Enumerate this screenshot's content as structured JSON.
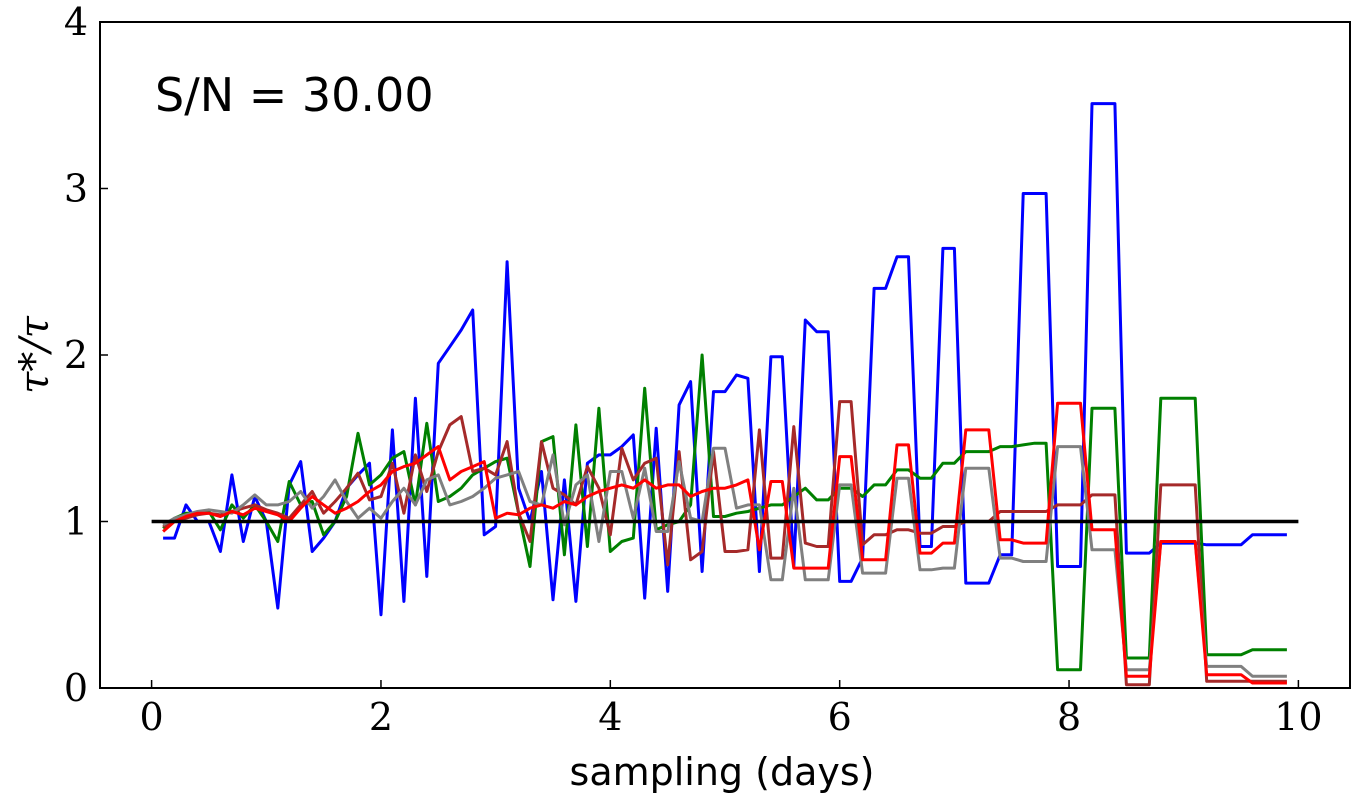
{
  "chart_data": {
    "type": "line",
    "title": "",
    "annotation": "S/N = 30.00",
    "xlabel": "sampling (days)",
    "ylabel": "τ*/τ",
    "xlim": [
      -0.45,
      10.45
    ],
    "ylim": [
      0,
      4
    ],
    "xticks": [
      0,
      2,
      4,
      6,
      8,
      10
    ],
    "yticks": [
      0,
      1,
      2,
      3,
      4
    ],
    "grid": false,
    "reference_line": {
      "y": 1,
      "x_range": [
        0,
        10
      ],
      "color": "#000000"
    },
    "series": [
      {
        "name": "blue",
        "color": "#0000ff",
        "x": [
          0.1,
          0.2,
          0.3,
          0.4,
          0.5,
          0.6,
          0.7,
          0.8,
          0.9,
          1.0,
          1.1,
          1.2,
          1.3,
          1.4,
          1.5,
          1.6,
          1.7,
          1.8,
          1.9,
          2.0,
          2.1,
          2.2,
          2.3,
          2.4,
          2.5,
          2.6,
          2.7,
          2.8,
          2.9,
          3.0,
          3.1,
          3.2,
          3.3,
          3.4,
          3.5,
          3.6,
          3.7,
          3.8,
          3.9,
          4.0,
          4.1,
          4.2,
          4.3,
          4.4,
          4.5,
          4.6,
          4.7,
          4.8,
          4.9,
          5.0,
          5.1,
          5.2,
          5.3,
          5.4,
          5.5,
          5.6,
          5.7,
          5.8,
          5.9,
          6.0,
          6.1,
          6.2,
          6.3,
          6.4,
          6.5,
          6.6,
          6.7,
          6.8,
          6.9,
          7.0,
          7.1,
          7.2,
          7.3,
          7.4,
          7.5,
          7.6,
          7.7,
          7.8,
          7.9,
          8.0,
          8.1,
          8.2,
          8.3,
          8.4,
          8.5,
          8.6,
          8.7,
          8.8,
          8.9,
          9.0,
          9.1,
          9.2,
          9.3,
          9.4,
          9.5,
          9.6,
          9.7,
          9.8,
          9.9
        ],
        "y": [
          0.9,
          0.9,
          1.1,
          1.0,
          1.0,
          0.82,
          1.28,
          0.88,
          1.15,
          1.0,
          0.48,
          1.22,
          1.36,
          0.82,
          0.9,
          1.0,
          1.2,
          1.28,
          1.35,
          0.44,
          1.55,
          0.52,
          1.74,
          0.67,
          1.95,
          2.05,
          2.15,
          2.27,
          0.92,
          0.97,
          2.56,
          1.2,
          1.0,
          1.3,
          0.53,
          1.25,
          0.52,
          1.35,
          1.4,
          1.4,
          1.45,
          1.52,
          0.54,
          1.56,
          0.58,
          1.7,
          1.84,
          0.7,
          1.78,
          1.78,
          1.88,
          1.86,
          0.7,
          1.99,
          1.99,
          0.73,
          2.21,
          2.14,
          2.14,
          0.64,
          0.64,
          0.78,
          2.4,
          2.4,
          2.59,
          2.59,
          0.85,
          0.85,
          2.64,
          2.64,
          0.63,
          0.63,
          0.63,
          0.8,
          0.8,
          2.97,
          2.97,
          2.97,
          0.73,
          0.73,
          0.73,
          3.51,
          3.51,
          3.51,
          0.81,
          0.81,
          0.81,
          0.87,
          0.87,
          0.87,
          0.87,
          0.86,
          0.86,
          0.86,
          0.86,
          0.92,
          0.92,
          0.92,
          0.92
        ]
      },
      {
        "name": "green",
        "color": "#008000",
        "x": [
          0.1,
          0.2,
          0.3,
          0.4,
          0.5,
          0.6,
          0.7,
          0.8,
          0.9,
          1.0,
          1.1,
          1.2,
          1.3,
          1.4,
          1.5,
          1.6,
          1.7,
          1.8,
          1.9,
          2.0,
          2.1,
          2.2,
          2.3,
          2.4,
          2.5,
          2.6,
          2.7,
          2.8,
          2.9,
          3.0,
          3.1,
          3.2,
          3.3,
          3.4,
          3.5,
          3.6,
          3.7,
          3.8,
          3.9,
          4.0,
          4.1,
          4.2,
          4.3,
          4.4,
          4.5,
          4.6,
          4.7,
          4.8,
          4.9,
          5.0,
          5.1,
          5.2,
          5.3,
          5.4,
          5.5,
          5.6,
          5.7,
          5.8,
          5.9,
          6.0,
          6.1,
          6.2,
          6.3,
          6.4,
          6.5,
          6.6,
          6.7,
          6.8,
          6.9,
          7.0,
          7.1,
          7.2,
          7.3,
          7.4,
          7.5,
          7.6,
          7.7,
          7.8,
          7.9,
          8.0,
          8.1,
          8.2,
          8.3,
          8.4,
          8.5,
          8.6,
          8.7,
          8.8,
          8.9,
          9.0,
          9.1,
          9.2,
          9.3,
          9.4,
          9.5,
          9.6,
          9.7,
          9.8,
          9.9
        ],
        "y": [
          0.96,
          1.02,
          1.05,
          1.05,
          1.06,
          0.95,
          1.1,
          1.02,
          1.1,
          1.0,
          0.88,
          1.24,
          1.1,
          1.12,
          0.92,
          1.0,
          1.15,
          1.53,
          1.22,
          1.28,
          1.38,
          1.42,
          1.1,
          1.59,
          1.12,
          1.15,
          1.2,
          1.28,
          1.32,
          1.36,
          1.38,
          1.05,
          0.73,
          1.48,
          1.51,
          0.8,
          1.58,
          0.85,
          1.68,
          0.82,
          0.88,
          0.9,
          1.8,
          0.95,
          0.98,
          1.0,
          1.1,
          2.0,
          1.03,
          1.03,
          1.05,
          1.06,
          1.08,
          1.1,
          1.1,
          1.15,
          1.2,
          1.13,
          1.13,
          1.2,
          1.2,
          1.15,
          1.22,
          1.22,
          1.31,
          1.31,
          1.26,
          1.26,
          1.35,
          1.35,
          1.42,
          1.42,
          1.42,
          1.45,
          1.45,
          1.46,
          1.47,
          1.47,
          0.11,
          0.11,
          0.11,
          1.68,
          1.68,
          1.68,
          0.18,
          0.18,
          0.18,
          1.74,
          1.74,
          1.74,
          1.74,
          0.2,
          0.2,
          0.2,
          0.2,
          0.23,
          0.23,
          0.23,
          0.23
        ]
      },
      {
        "name": "brown",
        "color": "#a52a2a",
        "x": [
          0.1,
          0.2,
          0.3,
          0.4,
          0.5,
          0.6,
          0.7,
          0.8,
          0.9,
          1.0,
          1.1,
          1.2,
          1.3,
          1.4,
          1.5,
          1.6,
          1.7,
          1.8,
          1.9,
          2.0,
          2.1,
          2.2,
          2.3,
          2.4,
          2.5,
          2.6,
          2.7,
          2.8,
          2.9,
          3.0,
          3.1,
          3.2,
          3.3,
          3.4,
          3.5,
          3.6,
          3.7,
          3.8,
          3.9,
          4.0,
          4.1,
          4.2,
          4.3,
          4.4,
          4.5,
          4.6,
          4.7,
          4.8,
          4.9,
          5.0,
          5.1,
          5.2,
          5.3,
          5.4,
          5.5,
          5.6,
          5.7,
          5.8,
          5.9,
          6.0,
          6.1,
          6.2,
          6.3,
          6.4,
          6.5,
          6.6,
          6.7,
          6.8,
          6.9,
          7.0,
          7.1,
          7.2,
          7.3,
          7.4,
          7.5,
          7.6,
          7.7,
          7.8,
          7.9,
          8.0,
          8.1,
          8.2,
          8.3,
          8.4,
          8.5,
          8.6,
          8.7,
          8.8,
          8.9,
          9.0,
          9.1,
          9.2,
          9.3,
          9.4,
          9.5,
          9.6,
          9.7,
          9.8,
          9.9
        ],
        "y": [
          0.97,
          1.0,
          1.02,
          1.04,
          1.05,
          1.04,
          1.06,
          1.08,
          1.1,
          1.07,
          1.05,
          1.02,
          1.1,
          1.18,
          1.05,
          1.12,
          1.2,
          1.29,
          1.13,
          1.15,
          1.35,
          1.05,
          1.4,
          1.18,
          1.42,
          1.58,
          1.63,
          1.3,
          1.32,
          1.28,
          1.48,
          1.05,
          0.88,
          1.48,
          1.2,
          1.16,
          1.1,
          1.33,
          1.2,
          0.92,
          1.44,
          1.25,
          1.35,
          1.38,
          0.74,
          1.42,
          0.77,
          0.82,
          1.42,
          0.82,
          0.82,
          0.83,
          1.55,
          0.78,
          0.78,
          1.57,
          0.87,
          0.85,
          0.85,
          1.72,
          1.72,
          0.86,
          0.92,
          0.92,
          0.95,
          0.95,
          0.93,
          0.93,
          0.97,
          0.97,
          1.0,
          1.0,
          1.0,
          1.06,
          1.06,
          1.06,
          1.06,
          1.06,
          1.1,
          1.1,
          1.1,
          1.16,
          1.16,
          1.16,
          0.02,
          0.02,
          0.02,
          1.22,
          1.22,
          1.22,
          1.22,
          0.04,
          0.04,
          0.04,
          0.04,
          0.04,
          0.04,
          0.04,
          0.04
        ]
      },
      {
        "name": "gray",
        "color": "#808080",
        "x": [
          0.1,
          0.2,
          0.3,
          0.4,
          0.5,
          0.6,
          0.7,
          0.8,
          0.9,
          1.0,
          1.1,
          1.2,
          1.3,
          1.4,
          1.5,
          1.6,
          1.7,
          1.8,
          1.9,
          2.0,
          2.1,
          2.2,
          2.3,
          2.4,
          2.5,
          2.6,
          2.7,
          2.8,
          2.9,
          3.0,
          3.1,
          3.2,
          3.3,
          3.4,
          3.5,
          3.6,
          3.7,
          3.8,
          3.9,
          4.0,
          4.1,
          4.2,
          4.3,
          4.4,
          4.5,
          4.6,
          4.7,
          4.8,
          4.9,
          5.0,
          5.1,
          5.2,
          5.3,
          5.4,
          5.5,
          5.6,
          5.7,
          5.8,
          5.9,
          6.0,
          6.1,
          6.2,
          6.3,
          6.4,
          6.5,
          6.6,
          6.7,
          6.8,
          6.9,
          7.0,
          7.1,
          7.2,
          7.3,
          7.4,
          7.5,
          7.6,
          7.7,
          7.8,
          7.9,
          8.0,
          8.1,
          8.2,
          8.3,
          8.4,
          8.5,
          8.6,
          8.7,
          8.8,
          8.9,
          9.0,
          9.1,
          9.2,
          9.3,
          9.4,
          9.5,
          9.6,
          9.7,
          9.8,
          9.9
        ],
        "y": [
          0.98,
          1.02,
          1.04,
          1.06,
          1.07,
          1.06,
          1.05,
          1.1,
          1.16,
          1.1,
          1.1,
          1.12,
          1.18,
          1.08,
          1.15,
          1.25,
          1.12,
          1.02,
          1.08,
          1.02,
          1.12,
          1.2,
          1.1,
          1.25,
          1.28,
          1.1,
          1.12,
          1.15,
          1.2,
          1.26,
          1.28,
          1.3,
          1.12,
          1.1,
          1.4,
          0.98,
          1.22,
          1.28,
          0.88,
          1.3,
          1.3,
          1.02,
          1.32,
          0.94,
          0.94,
          1.36,
          1.02,
          1.0,
          1.44,
          1.44,
          1.08,
          1.1,
          1.1,
          0.65,
          0.65,
          1.2,
          0.65,
          0.65,
          0.65,
          1.22,
          1.22,
          0.69,
          0.69,
          0.69,
          1.26,
          1.26,
          0.71,
          0.71,
          0.72,
          0.72,
          1.32,
          1.32,
          1.32,
          0.78,
          0.78,
          0.76,
          0.76,
          0.76,
          1.45,
          1.45,
          1.45,
          0.83,
          0.83,
          0.83,
          0.11,
          0.11,
          0.11,
          0.88,
          0.88,
          0.88,
          0.88,
          0.13,
          0.13,
          0.13,
          0.13,
          0.07,
          0.07,
          0.07,
          0.07
        ]
      },
      {
        "name": "red",
        "color": "#ff0000",
        "x": [
          0.1,
          0.2,
          0.3,
          0.4,
          0.5,
          0.6,
          0.7,
          0.8,
          0.9,
          1.0,
          1.1,
          1.2,
          1.3,
          1.4,
          1.5,
          1.6,
          1.7,
          1.8,
          1.9,
          2.0,
          2.1,
          2.2,
          2.3,
          2.4,
          2.5,
          2.6,
          2.7,
          2.8,
          2.9,
          3.0,
          3.1,
          3.2,
          3.3,
          3.4,
          3.5,
          3.6,
          3.7,
          3.8,
          3.9,
          4.0,
          4.1,
          4.2,
          4.3,
          4.4,
          4.5,
          4.6,
          4.7,
          4.8,
          4.9,
          5.0,
          5.1,
          5.2,
          5.3,
          5.4,
          5.5,
          5.6,
          5.7,
          5.8,
          5.9,
          6.0,
          6.1,
          6.2,
          6.3,
          6.4,
          6.5,
          6.6,
          6.7,
          6.8,
          6.9,
          7.0,
          7.1,
          7.2,
          7.3,
          7.4,
          7.5,
          7.6,
          7.7,
          7.8,
          7.9,
          8.0,
          8.1,
          8.2,
          8.3,
          8.4,
          8.5,
          8.6,
          8.7,
          8.8,
          8.9,
          9.0,
          9.1,
          9.2,
          9.3,
          9.4,
          9.5,
          9.6,
          9.7,
          9.8,
          9.9
        ],
        "y": [
          0.94,
          1.0,
          1.03,
          1.05,
          1.05,
          1.03,
          1.06,
          1.04,
          1.08,
          1.06,
          1.04,
          1.0,
          1.08,
          1.15,
          1.1,
          1.05,
          1.08,
          1.12,
          1.18,
          1.22,
          1.3,
          1.33,
          1.35,
          1.4,
          1.45,
          1.25,
          1.3,
          1.33,
          1.36,
          1.02,
          1.05,
          1.04,
          1.08,
          1.1,
          1.08,
          1.12,
          1.1,
          1.15,
          1.18,
          1.2,
          1.22,
          1.2,
          1.25,
          1.2,
          1.22,
          1.22,
          1.15,
          1.18,
          1.2,
          1.2,
          1.22,
          1.25,
          0.83,
          1.24,
          1.24,
          0.72,
          0.72,
          0.72,
          0.72,
          1.39,
          1.39,
          0.77,
          0.77,
          0.77,
          1.46,
          1.46,
          0.81,
          0.81,
          0.87,
          0.87,
          1.55,
          1.55,
          1.55,
          0.89,
          0.89,
          0.87,
          0.87,
          0.87,
          1.71,
          1.71,
          1.71,
          0.95,
          0.95,
          0.95,
          0.07,
          0.07,
          0.07,
          0.88,
          0.88,
          0.88,
          0.88,
          0.08,
          0.08,
          0.08,
          0.08,
          0.03,
          0.03,
          0.03,
          0.03
        ]
      }
    ]
  }
}
